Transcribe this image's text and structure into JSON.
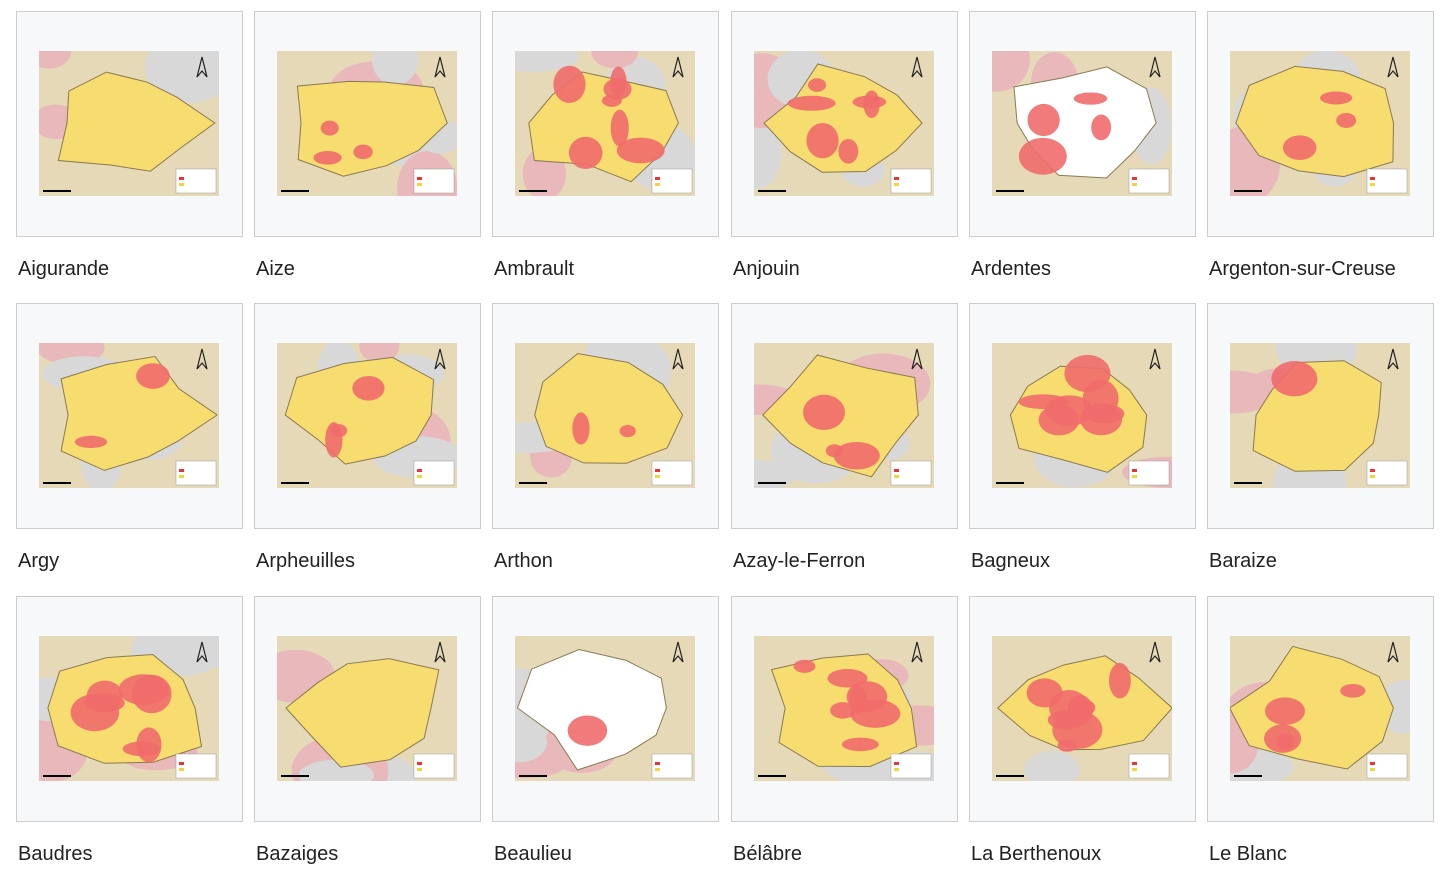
{
  "gallery": {
    "items": [
      "Aigurande",
      "Aize",
      "Ambrault",
      "Anjouin",
      "Ardentes",
      "Argenton-sur-Creuse",
      "Argy",
      "Arpheuilles",
      "Arthon",
      "Azay-le-Ferron",
      "Bagneux",
      "Baraize",
      "Baudres",
      "Bazaiges",
      "Beaulieu",
      "Bélâbre",
      "La Berthenoux",
      "Le Blanc"
    ]
  }
}
